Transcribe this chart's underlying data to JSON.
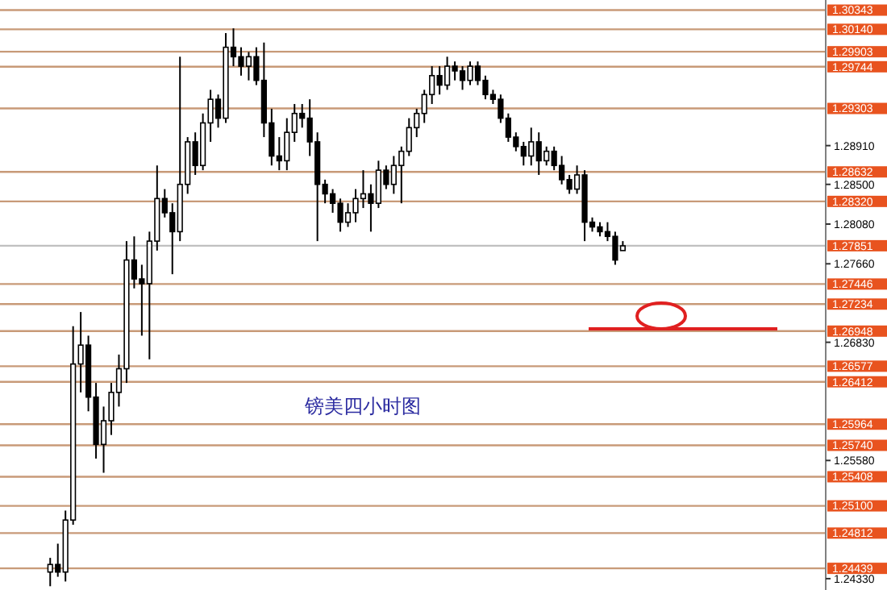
{
  "chart_data": {
    "type": "candlestick",
    "title": "镑美四小时图",
    "color": "#000000",
    "categories": [
      null,
      null,
      null,
      null,
      null,
      null,
      null,
      null,
      null,
      null,
      null,
      null,
      null,
      null,
      null,
      null,
      null,
      null,
      null,
      null,
      null,
      null,
      null,
      null,
      null,
      null,
      null,
      null,
      null,
      null,
      null,
      null,
      null,
      null,
      null,
      null,
      null,
      null,
      null,
      null,
      null,
      null,
      null,
      null,
      null,
      null,
      null,
      null,
      null,
      null,
      null,
      null,
      null,
      null,
      null,
      null,
      null,
      null,
      null,
      null,
      null,
      null,
      null,
      null,
      null,
      null,
      null,
      null,
      null,
      null,
      null,
      null,
      null,
      null,
      null,
      null,
      null,
      null,
      null,
      null,
      null,
      null,
      null,
      null,
      null,
      null,
      null,
      null,
      null,
      null,
      null,
      null,
      null,
      null,
      null,
      null,
      null,
      null,
      null,
      null,
      null,
      null,
      null,
      null,
      null,
      null,
      null,
      null
    ],
    "ohlc": [
      null,
      null,
      null,
      null,
      null,
      null,
      [
        1.244,
        1.2455,
        1.2425,
        1.2448
      ],
      [
        1.2448,
        1.247,
        1.2435,
        1.244
      ],
      [
        1.244,
        1.2505,
        1.243,
        1.2495
      ],
      [
        1.2495,
        1.27,
        1.249,
        1.266
      ],
      [
        1.266,
        1.2715,
        1.263,
        1.268
      ],
      [
        1.268,
        1.269,
        1.261,
        1.2625
      ],
      [
        1.2625,
        1.264,
        1.256,
        1.2575
      ],
      [
        1.2575,
        1.2615,
        1.2545,
        1.26
      ],
      [
        1.26,
        1.264,
        1.2585,
        1.263
      ],
      [
        1.263,
        1.267,
        1.2615,
        1.2655
      ],
      [
        1.2655,
        1.279,
        1.264,
        1.277
      ],
      [
        1.277,
        1.2795,
        1.274,
        1.275
      ],
      [
        1.275,
        1.2765,
        1.269,
        1.2745
      ],
      [
        1.2745,
        1.28,
        1.2665,
        1.279
      ],
      [
        1.279,
        1.287,
        1.278,
        1.2835
      ],
      [
        1.2835,
        1.2845,
        1.2815,
        1.282
      ],
      [
        1.282,
        1.283,
        1.2755,
        1.28
      ],
      [
        1.28,
        1.2985,
        1.279,
        1.285
      ],
      [
        1.285,
        1.29,
        1.284,
        1.2895
      ],
      [
        1.2895,
        1.2905,
        1.286,
        1.287
      ],
      [
        1.287,
        1.2925,
        1.2865,
        1.2915
      ],
      [
        1.2915,
        1.295,
        1.2895,
        1.294
      ],
      [
        1.294,
        1.2945,
        1.291,
        1.292
      ],
      [
        1.292,
        1.301,
        1.2915,
        1.2995
      ],
      [
        1.2995,
        1.3015,
        1.2975,
        1.2985
      ],
      [
        1.2985,
        1.2995,
        1.2965,
        1.2975
      ],
      [
        1.2975,
        1.299,
        1.296,
        1.2985
      ],
      [
        1.2985,
        1.2995,
        1.2955,
        1.296
      ],
      [
        1.296,
        1.3,
        1.29,
        1.2915
      ],
      [
        1.2915,
        1.293,
        1.287,
        1.288
      ],
      [
        1.288,
        1.29,
        1.2865,
        1.2875
      ],
      [
        1.2875,
        1.292,
        1.2865,
        1.2905
      ],
      [
        1.2905,
        1.2935,
        1.2895,
        1.2925
      ],
      [
        1.2925,
        1.2935,
        1.291,
        1.292
      ],
      [
        1.292,
        1.294,
        1.288,
        1.2895
      ],
      [
        1.2895,
        1.2905,
        1.279,
        1.285
      ],
      [
        1.285,
        1.2855,
        1.283,
        1.284
      ],
      [
        1.284,
        1.2845,
        1.282,
        1.283
      ],
      [
        1.283,
        1.2835,
        1.28,
        1.281
      ],
      [
        1.281,
        1.283,
        1.2805,
        1.282
      ],
      [
        1.282,
        1.2845,
        1.281,
        1.2835
      ],
      [
        1.2835,
        1.2865,
        1.2825,
        1.284
      ],
      [
        1.284,
        1.285,
        1.28,
        1.283
      ],
      [
        1.283,
        1.2875,
        1.2825,
        1.2865
      ],
      [
        1.2865,
        1.287,
        1.2845,
        1.285
      ],
      [
        1.285,
        1.288,
        1.284,
        1.287
      ],
      [
        1.287,
        1.289,
        1.283,
        1.2885
      ],
      [
        1.2885,
        1.292,
        1.288,
        1.291
      ],
      [
        1.291,
        1.293,
        1.29,
        1.2925
      ],
      [
        1.2925,
        1.295,
        1.2915,
        1.2945
      ],
      [
        1.2945,
        1.2975,
        1.2935,
        1.2965
      ],
      [
        1.2965,
        1.2975,
        1.2945,
        1.2955
      ],
      [
        1.2955,
        1.2985,
        1.295,
        1.2975
      ],
      [
        1.2975,
        1.298,
        1.296,
        1.297
      ],
      [
        1.297,
        1.2975,
        1.295,
        1.296
      ],
      [
        1.296,
        1.298,
        1.2955,
        1.2975
      ],
      [
        1.2975,
        1.298,
        1.2955,
        1.296
      ],
      [
        1.296,
        1.2965,
        1.294,
        1.2945
      ],
      [
        1.2945,
        1.295,
        1.2935,
        1.294
      ],
      [
        1.294,
        1.2945,
        1.2915,
        1.292
      ],
      [
        1.292,
        1.2925,
        1.2895,
        1.29
      ],
      [
        1.29,
        1.2905,
        1.2885,
        1.289
      ],
      [
        1.289,
        1.2895,
        1.287,
        1.288
      ],
      [
        1.288,
        1.291,
        1.287,
        1.2895
      ],
      [
        1.2895,
        1.2905,
        1.286,
        1.2875
      ],
      [
        1.2875,
        1.289,
        1.287,
        1.2885
      ],
      [
        1.2885,
        1.289,
        1.2865,
        1.287
      ],
      [
        1.287,
        1.288,
        1.285,
        1.2855
      ],
      [
        1.2855,
        1.286,
        1.284,
        1.2845
      ],
      [
        1.2845,
        1.287,
        1.284,
        1.286
      ],
      [
        1.286,
        1.2865,
        1.279,
        1.281
      ],
      [
        1.281,
        1.2815,
        1.28,
        1.2805
      ],
      [
        1.2805,
        1.281,
        1.2795,
        1.28
      ],
      [
        1.28,
        1.281,
        1.279,
        1.2795
      ],
      [
        1.2795,
        1.28,
        1.2765,
        1.277
      ],
      [
        1.278,
        1.279,
        1.278,
        1.2785
      ],
      null,
      null,
      null,
      null,
      null,
      null,
      null,
      null,
      null,
      null,
      null,
      null,
      null,
      null,
      null,
      null,
      null,
      null,
      null,
      null,
      null,
      null,
      null,
      null,
      null,
      null
    ],
    "ylim": [
      1.2421,
      1.3045
    ],
    "yticks": [
      {
        "value": 1.2891,
        "label": "1.28910"
      },
      {
        "value": 1.285,
        "label": "1.28500"
      },
      {
        "value": 1.2808,
        "label": "1.28080"
      },
      {
        "value": 1.2766,
        "label": "1.27660"
      },
      {
        "value": 1.2683,
        "label": "1.26830"
      },
      {
        "value": 1.2558,
        "label": "1.25580"
      },
      {
        "value": 1.2433,
        "label": "1.24330"
      }
    ],
    "ref_lines": [
      {
        "axis": "y",
        "value": 1.30343,
        "label": "1.30343",
        "color": "#c89a78"
      },
      {
        "axis": "y",
        "value": 1.3014,
        "label": "1.30140",
        "color": "#c89a78"
      },
      {
        "axis": "y",
        "value": 1.29903,
        "label": "1.29903",
        "color": "#c89a78"
      },
      {
        "axis": "y",
        "value": 1.29744,
        "label": "1.29744",
        "color": "#c89a78"
      },
      {
        "axis": "y",
        "value": 1.29303,
        "label": "1.29303",
        "color": "#c89a78"
      },
      {
        "axis": "y",
        "value": 1.28632,
        "label": "1.28632",
        "color": "#c89a78"
      },
      {
        "axis": "y",
        "value": 1.2832,
        "label": "1.28320",
        "color": "#c89a78"
      },
      {
        "axis": "y",
        "value": 1.27851,
        "label": "1.27851",
        "color": "#c0c0c0"
      },
      {
        "axis": "y",
        "value": 1.27446,
        "label": "1.27446",
        "color": "#c89a78"
      },
      {
        "axis": "y",
        "value": 1.27234,
        "label": "1.27234",
        "color": "#c89a78"
      },
      {
        "axis": "y",
        "value": 1.26948,
        "label": "1.26948",
        "color": "#c89a78"
      },
      {
        "axis": "y",
        "value": 1.26577,
        "label": "1.26577",
        "color": "#c89a78"
      },
      {
        "axis": "y",
        "value": 1.26412,
        "label": "1.26412",
        "color": "#c89a78"
      },
      {
        "axis": "y",
        "value": 1.25964,
        "label": "1.25964",
        "color": "#c89a78"
      },
      {
        "axis": "y",
        "value": 1.2574,
        "label": "1.25740",
        "color": "#c89a78"
      },
      {
        "axis": "y",
        "value": 1.25408,
        "label": "1.25408",
        "color": "#c89a78"
      },
      {
        "axis": "y",
        "value": 1.251,
        "label": "1.25100",
        "color": "#c89a78"
      },
      {
        "axis": "y",
        "value": 1.24812,
        "label": "1.24812",
        "color": "#c89a78"
      },
      {
        "axis": "y",
        "value": 1.24439,
        "label": "1.24439",
        "color": "#c89a78"
      }
    ]
  }
}
